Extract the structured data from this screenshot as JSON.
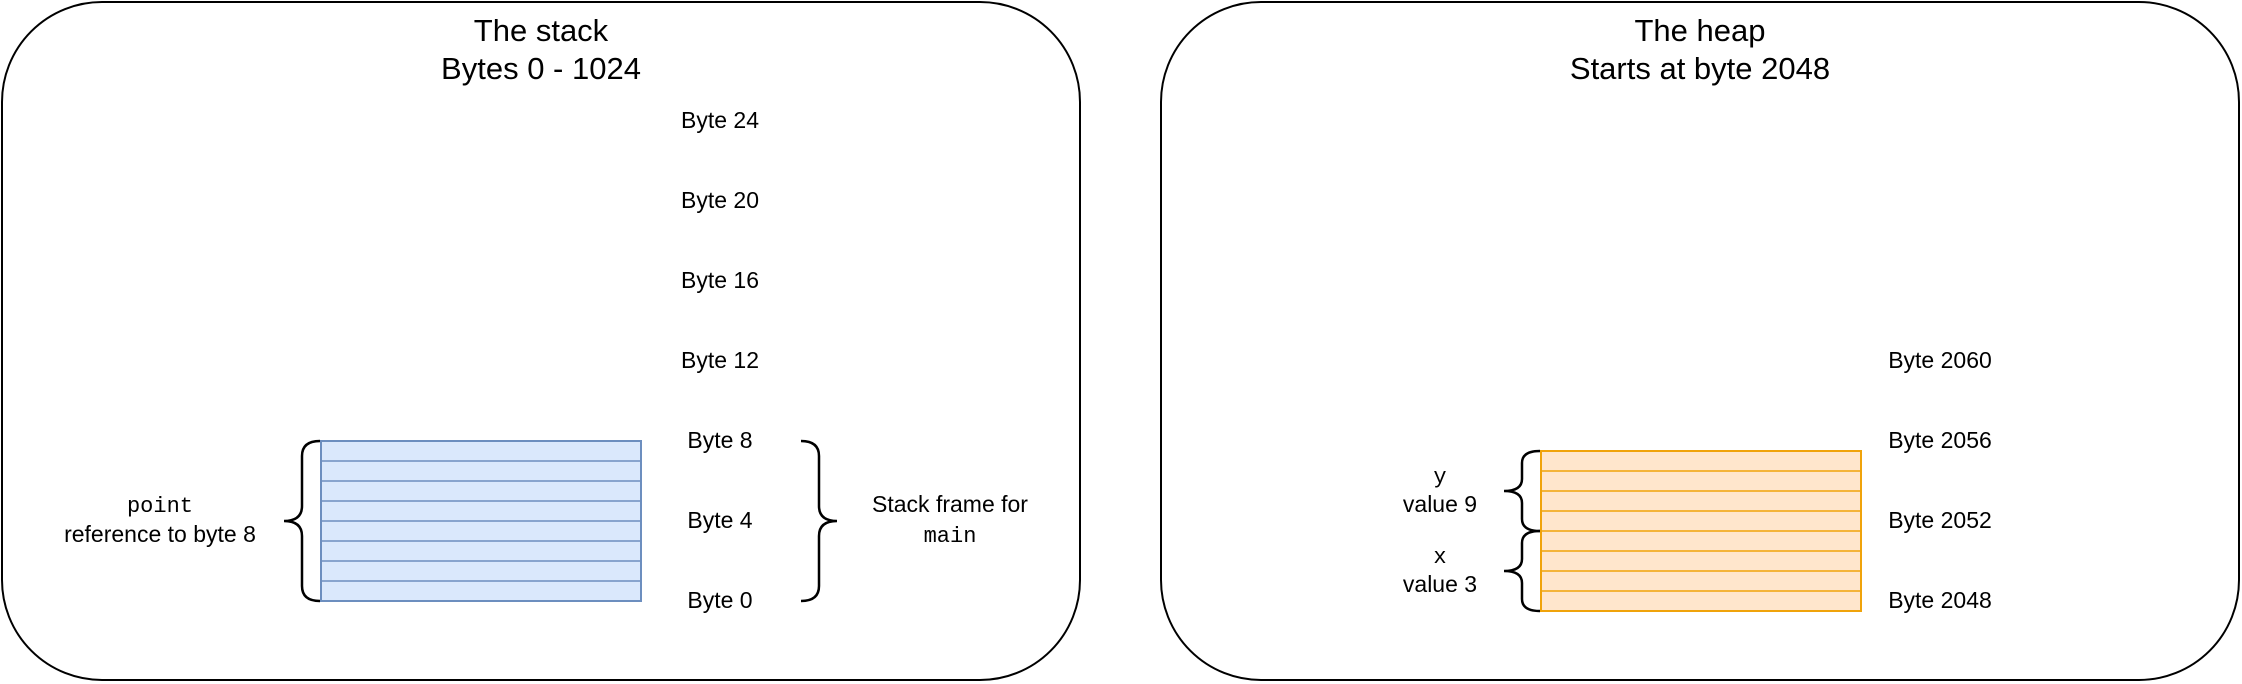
{
  "stack": {
    "title": "The stack",
    "subtitle": "Bytes 0 - 1024",
    "byte_labels": [
      "Byte 24",
      "Byte 20",
      "Byte 16",
      "Byte 12",
      "Byte 8",
      "Byte 4",
      "Byte 0"
    ],
    "variable_name": "point",
    "variable_desc": "reference to byte 8",
    "frame_label": "Stack frame for",
    "frame_name": "main",
    "block_color": "#dae8fc",
    "block_stroke": "#6c8ebf"
  },
  "heap": {
    "title": "The heap",
    "subtitle": "Starts at byte 2048",
    "byte_labels": [
      "Byte 2060",
      "Byte 2056",
      "Byte 2052",
      "Byte 2048"
    ],
    "y_name": "y",
    "y_value": "value 9",
    "x_name": "x",
    "x_value": "value 3",
    "block_color": "#ffe6cc",
    "block_stroke": "#f0a30a"
  }
}
